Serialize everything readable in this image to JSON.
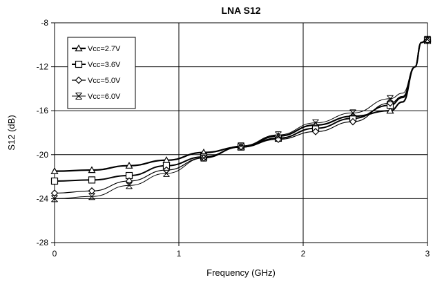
{
  "chart_data": {
    "type": "line",
    "title": "LNA S12",
    "xlabel": "Frequency (GHz)",
    "ylabel": "S12 (dB)",
    "xlim": [
      0,
      3
    ],
    "ylim": [
      -28,
      -8
    ],
    "xticks": [
      0,
      1,
      2,
      3
    ],
    "yticks": [
      -28,
      -24,
      -20,
      -16,
      -12,
      -8
    ],
    "grid": "on",
    "legend_position": "top-left",
    "series": [
      {
        "name": "Vcc=2.7V",
        "marker": "triangle",
        "x": [
          0,
          0.3,
          0.6,
          0.9,
          1.2,
          1.5,
          1.8,
          2.1,
          2.4,
          2.7,
          2.8,
          2.9,
          2.95,
          3.0
        ],
        "values": [
          -21.5,
          -21.4,
          -21.0,
          -20.5,
          -19.8,
          -19.3,
          -18.3,
          -17.3,
          -16.5,
          -16.0,
          -15.2,
          -12.0,
          -9.8,
          -9.5
        ]
      },
      {
        "name": "Vcc=3.6V",
        "marker": "square",
        "x": [
          0,
          0.3,
          0.6,
          0.9,
          1.2,
          1.5,
          1.8,
          2.1,
          2.4,
          2.7,
          2.8,
          2.9,
          2.95,
          3.0
        ],
        "values": [
          -22.4,
          -22.3,
          -21.9,
          -21.0,
          -20.2,
          -19.3,
          -18.5,
          -17.6,
          -16.7,
          -15.5,
          -14.8,
          -12.0,
          -9.8,
          -9.6
        ]
      },
      {
        "name": "Vcc=5.0V",
        "marker": "diamond",
        "x": [
          0,
          0.3,
          0.6,
          0.9,
          1.2,
          1.5,
          1.8,
          2.1,
          2.4,
          2.7,
          2.8,
          2.9,
          2.95,
          3.0
        ],
        "values": [
          -23.5,
          -23.3,
          -22.4,
          -21.4,
          -20.3,
          -19.3,
          -18.6,
          -17.9,
          -17.0,
          -15.3,
          -14.7,
          -12.0,
          -9.8,
          -9.6
        ]
      },
      {
        "name": "Vcc=6.0V",
        "marker": "x-star",
        "x": [
          0,
          0.3,
          0.6,
          0.9,
          1.2,
          1.5,
          1.8,
          2.1,
          2.4,
          2.7,
          2.8,
          2.9,
          2.95,
          3.0
        ],
        "values": [
          -24.0,
          -23.8,
          -22.8,
          -21.7,
          -20.3,
          -19.2,
          -18.2,
          -17.1,
          -16.2,
          -14.9,
          -14.4,
          -12.0,
          -9.8,
          -9.5
        ]
      }
    ],
    "line_color": "#000000"
  }
}
